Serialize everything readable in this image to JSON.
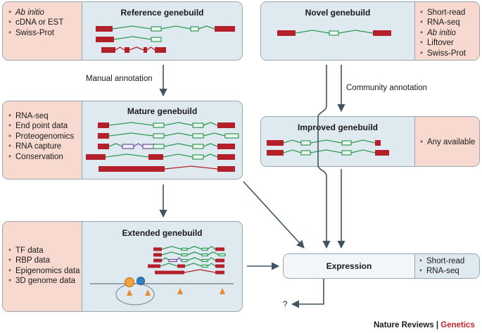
{
  "boxes": {
    "reference": {
      "title": "Reference genebuild",
      "sources": [
        {
          "text": "Ab initio",
          "italic": true
        },
        {
          "text": "cDNA or EST",
          "italic": false
        },
        {
          "text": "Swiss-Prot",
          "italic": false
        }
      ]
    },
    "novel": {
      "title": "Novel genebuild",
      "sources": [
        {
          "text": "Short-read",
          "italic": false
        },
        {
          "text": "RNA-seq",
          "italic": false,
          "continuation": true
        },
        {
          "text": "Ab initio",
          "italic": true
        },
        {
          "text": "Liftover",
          "italic": false
        },
        {
          "text": "Swiss-Prot",
          "italic": false
        }
      ]
    },
    "mature": {
      "title": "Mature genebuild",
      "sources": [
        {
          "text": "RNA-seq",
          "italic": false
        },
        {
          "text": "End point data",
          "italic": false
        },
        {
          "text": "Proteogenomics",
          "italic": false
        },
        {
          "text": "RNA capture",
          "italic": false
        },
        {
          "text": "Conservation",
          "italic": false
        }
      ]
    },
    "improved": {
      "title": "Improved genebuild",
      "sources": [
        {
          "text": "Any available",
          "italic": false
        }
      ]
    },
    "extended": {
      "title": "Extended genebuild",
      "sources": [
        {
          "text": "TF data",
          "italic": false
        },
        {
          "text": "RBP data",
          "italic": false
        },
        {
          "text": "Epigenomics data",
          "italic": false
        },
        {
          "text": "3D genome data",
          "italic": false
        }
      ]
    },
    "expression": {
      "title": "Expression",
      "sources": [
        {
          "text": "Short-read",
          "italic": false
        },
        {
          "text": "RNA-seq",
          "italic": false
        }
      ]
    }
  },
  "arrows": {
    "manual": "Manual annotation",
    "community": "Community annotation",
    "question": "?"
  },
  "credit": {
    "journal": "Nature Reviews",
    "separator": " | ",
    "section": "Genetics"
  },
  "colors": {
    "exon_red": "#b3202a",
    "exon_green": "#2f9a55",
    "exon_purple": "#6f4ea0",
    "utr_fill": "#eef7ef",
    "pink_panel": "#f7d9cf",
    "blue_panel": "#dfe9f0",
    "arrow": "#3f5562",
    "credit_red": "#c0272d"
  }
}
